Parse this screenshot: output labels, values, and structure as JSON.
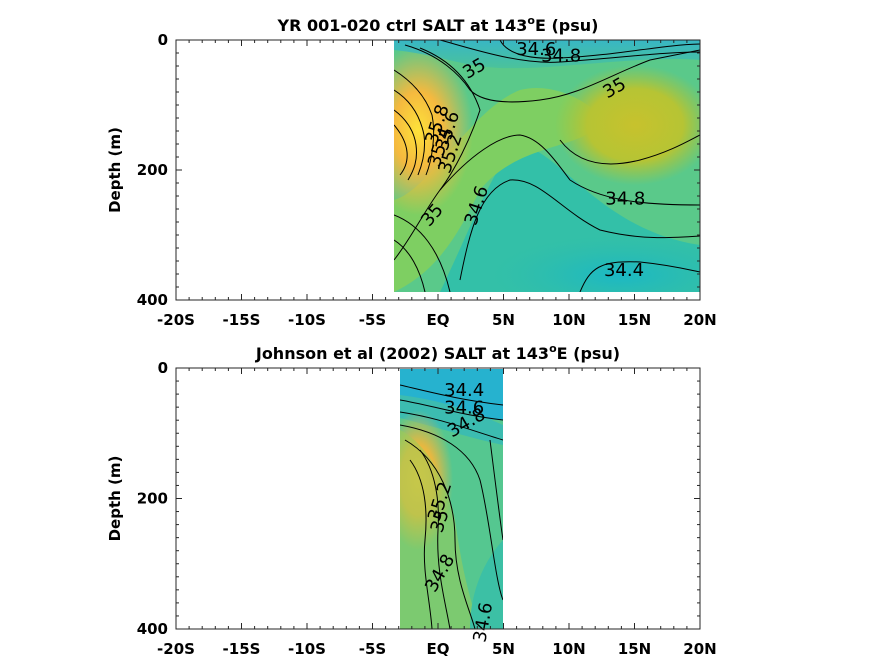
{
  "chart_data": [
    {
      "type": "heatmap",
      "title": "YR 001-020 ctrl SALT at 143",
      "title_sup": "o",
      "title_suffix": "E (psu)",
      "ylabel": "Depth (m)",
      "xlim": [
        -20,
        20
      ],
      "ylim": [
        0,
        400
      ],
      "y_reversed": true,
      "x_ticks": [
        -20,
        -15,
        -10,
        -5,
        0,
        5,
        10,
        15,
        20
      ],
      "x_tick_labels": [
        "-20S",
        "-15S",
        "-10S",
        "-5S",
        "EQ",
        "5N",
        "10N",
        "15N",
        "20N"
      ],
      "y_ticks": [
        0,
        200,
        400
      ],
      "y_tick_labels": [
        "0",
        "200",
        "400"
      ],
      "data_extent": {
        "lon": [
          -3.3,
          20
        ],
        "depth": [
          0,
          385
        ]
      },
      "contour_labels": [
        {
          "text": "34.6",
          "lon": 7.5,
          "depth": 15,
          "angle": 0
        },
        {
          "text": "34.8",
          "lon": 9.4,
          "depth": 25,
          "angle": 0
        },
        {
          "text": "35",
          "lon": 2.8,
          "depth": 45,
          "angle": -30
        },
        {
          "text": "35",
          "lon": 13.5,
          "depth": 75,
          "angle": -30
        },
        {
          "text": "35.8",
          "lon": 0.0,
          "depth": 130,
          "angle": -72
        },
        {
          "text": "35.6",
          "lon": 0.8,
          "depth": 140,
          "angle": -72
        },
        {
          "text": "35.4",
          "lon": 0.2,
          "depth": 165,
          "angle": -72
        },
        {
          "text": "35.2",
          "lon": 1.0,
          "depth": 175,
          "angle": -72
        },
        {
          "text": "35",
          "lon": -0.4,
          "depth": 270,
          "angle": -50
        },
        {
          "text": "34.6",
          "lon": 3.0,
          "depth": 255,
          "angle": -72
        },
        {
          "text": "34.8",
          "lon": 14.3,
          "depth": 245,
          "angle": 0
        },
        {
          "text": "34.4",
          "lon": 14.2,
          "depth": 355,
          "angle": 0
        }
      ]
    },
    {
      "type": "heatmap",
      "title": "Johnson et al (2002) SALT at 143",
      "title_sup": "o",
      "title_suffix": "E (psu)",
      "ylabel": "Depth (m)",
      "xlim": [
        -20,
        20
      ],
      "ylim": [
        0,
        400
      ],
      "y_reversed": true,
      "x_ticks": [
        -20,
        -15,
        -10,
        -5,
        0,
        5,
        10,
        15,
        20
      ],
      "x_tick_labels": [
        "-20S",
        "-15S",
        "-10S",
        "-5S",
        "EQ",
        "5N",
        "10N",
        "15N",
        "20N"
      ],
      "y_ticks": [
        0,
        200,
        400
      ],
      "y_tick_labels": [
        "0",
        "200",
        "400"
      ],
      "data_extent": {
        "lon": [
          -2.8,
          5.0
        ],
        "depth": [
          5,
          400
        ]
      },
      "contour_labels": [
        {
          "text": "34.4",
          "lon": 2.0,
          "depth": 35,
          "angle": 0
        },
        {
          "text": "34.6",
          "lon": 2.0,
          "depth": 62,
          "angle": 0
        },
        {
          "text": "34.8",
          "lon": 2.2,
          "depth": 85,
          "angle": -30
        },
        {
          "text": "35.2",
          "lon": 0.2,
          "depth": 205,
          "angle": -72
        },
        {
          "text": "35",
          "lon": 0.2,
          "depth": 235,
          "angle": -72
        },
        {
          "text": "34.8",
          "lon": 0.2,
          "depth": 315,
          "angle": -60
        },
        {
          "text": "34.6",
          "lon": 3.5,
          "depth": 390,
          "angle": -80
        }
      ]
    }
  ]
}
